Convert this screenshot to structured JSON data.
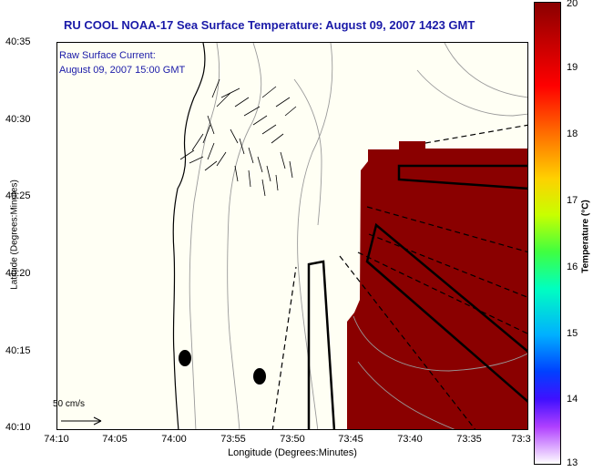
{
  "title": "RU COOL  NOAA-17  Sea Surface Temperature:  August 09, 2007 1423 GMT",
  "map_legend": {
    "line1": "Raw Surface Current:",
    "line2": "August 09, 2007 15:00 GMT"
  },
  "axes": {
    "xlabel": "Longitude (Degrees:Minutes)",
    "ylabel": "Latitude (Degrees:Minutes)",
    "xticks": [
      "74:10",
      "74:05",
      "74:00",
      "73:55",
      "73:50",
      "73:45",
      "73:40",
      "73:35",
      "73:3"
    ],
    "yticks": [
      "40:35",
      "40:30",
      "40:25",
      "40:20",
      "40:15",
      "40:10"
    ]
  },
  "colorbar": {
    "label": "Temperature (°C)",
    "ticks": [
      "20",
      "19",
      "18",
      "17",
      "16",
      "15",
      "14",
      "13"
    ],
    "range": [
      13,
      20
    ]
  },
  "scale": {
    "label": "50 cm/s"
  },
  "colors": {
    "title": "#1a1aa8",
    "sst_fill": "#8a0000",
    "land": "#fffff4",
    "contour": "#9a9a9a"
  }
}
